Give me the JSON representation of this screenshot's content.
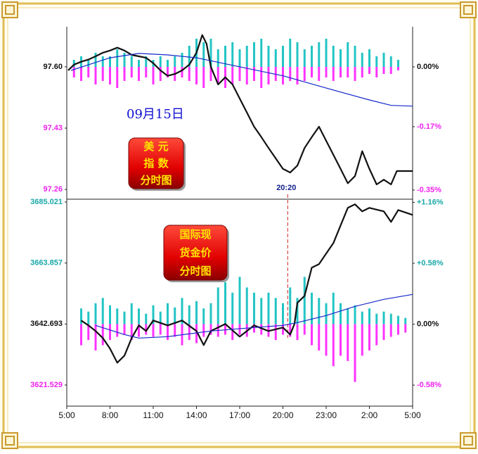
{
  "chart_data": [
    {
      "type": "line",
      "annotation": "09月15日",
      "badge": [
        "美 元",
        "指 数",
        "分时图"
      ],
      "marker": {
        "label": "20:20",
        "x": 15.33
      },
      "xlim": [
        0,
        24
      ],
      "ylim": [
        97.233,
        97.711
      ],
      "y2lim": [
        -0.376,
        0.114
      ],
      "yticks": [
        {
          "value": 97.6,
          "label": "97.60"
        },
        97.43,
        97.26
      ],
      "y2ticks": [
        {
          "value": 0,
          "label": "0.00%"
        },
        {
          "value": -0.17,
          "label": "-0.17%"
        },
        {
          "value": -0.35,
          "label": "-0.35%"
        }
      ],
      "tick_colors": {
        "up": "#1aa8a8",
        "zero": "#111111",
        "down": "#ee22ee"
      },
      "series": [
        {
          "color": "#111111",
          "x": [
            0.1,
            0.5,
            1,
            1.5,
            2,
            2.5,
            3,
            3.5,
            4,
            4.5,
            5,
            5.5,
            6,
            6.5,
            7,
            7.5,
            8,
            8.5,
            9,
            9.4,
            9.7,
            10,
            10.5,
            11,
            11.5,
            12,
            12.5,
            13,
            13.5,
            14,
            14.5,
            15,
            15.5,
            16,
            16.5,
            17,
            17.5,
            18,
            18.5,
            19,
            19.5,
            20,
            20.5,
            21,
            21.5,
            22,
            22.5,
            22.9,
            24
          ],
          "values": [
            97.59,
            97.606,
            97.614,
            97.62,
            97.629,
            97.639,
            97.645,
            97.653,
            97.645,
            97.633,
            97.629,
            97.625,
            97.61,
            97.59,
            97.575,
            97.58,
            97.59,
            97.606,
            97.639,
            97.688,
            97.664,
            97.6,
            97.551,
            97.571,
            97.551,
            97.512,
            97.473,
            97.434,
            97.405,
            97.375,
            97.346,
            97.317,
            97.307,
            97.326,
            97.375,
            97.405,
            97.434,
            97.395,
            97.356,
            97.317,
            97.277,
            97.297,
            97.366,
            97.317,
            97.274,
            97.287,
            97.274,
            97.311,
            97.311
          ]
        },
        {
          "color": "#1428c8",
          "x": [
            0.3,
            3,
            5,
            7,
            9,
            12,
            15,
            18,
            21,
            22.5,
            24
          ],
          "values": [
            97.59,
            97.625,
            97.637,
            97.633,
            97.625,
            97.6,
            97.575,
            97.541,
            97.508,
            97.493,
            97.491
          ]
        }
      ],
      "volume": {
        "up_color": "#22c4c4",
        "down_color": "#ff33ff",
        "x": [
          0.5,
          1,
          1.5,
          2,
          2.5,
          3,
          3.5,
          4,
          4.5,
          5,
          5.5,
          6,
          6.5,
          7,
          7.5,
          8,
          8.5,
          9,
          9.5,
          10,
          10.5,
          11,
          11.5,
          12,
          12.5,
          13,
          13.5,
          14,
          14.5,
          15,
          15.5,
          16,
          16.5,
          17,
          17.5,
          18,
          18.5,
          19,
          19.5,
          20,
          20.5,
          21,
          21.5,
          22,
          22.5,
          23,
          23.5
        ],
        "up": [
          0.02,
          0.03,
          0.02,
          0.04,
          0.03,
          0.03,
          0.05,
          0.04,
          0.03,
          0.02,
          0.03,
          0.02,
          0.03,
          0.02,
          0.03,
          0.04,
          0.06,
          0.08,
          0.07,
          0.08,
          0.05,
          0.06,
          0.07,
          0.05,
          0.06,
          0.07,
          0.08,
          0.06,
          0.05,
          0.06,
          0.08,
          0.07,
          0.05,
          0.06,
          0.07,
          0.08,
          0.06,
          0.05,
          0.07,
          0.06,
          0.04,
          0.05,
          0.03,
          0.04,
          0.03,
          0.02,
          0
        ],
        "down": [
          -0.03,
          -0.04,
          -0.03,
          -0.05,
          -0.04,
          -0.05,
          -0.06,
          -0.04,
          -0.03,
          -0.04,
          -0.03,
          -0.05,
          -0.04,
          -0.03,
          -0.04,
          -0.03,
          -0.04,
          -0.05,
          -0.06,
          -0.04,
          -0.05,
          -0.06,
          -0.05,
          -0.04,
          -0.05,
          -0.04,
          -0.06,
          -0.05,
          -0.04,
          -0.05,
          -0.04,
          -0.05,
          -0.04,
          -0.03,
          -0.04,
          -0.03,
          -0.04,
          -0.03,
          -0.03,
          -0.04,
          -0.03,
          -0.02,
          -0.03,
          -0.02,
          -0.02,
          -0.01,
          0
        ]
      }
    },
    {
      "type": "line",
      "badge": [
        "国际现",
        "货金价",
        "分时图"
      ],
      "xlim": [
        0,
        24
      ],
      "xticks": [
        {
          "value": 0,
          "label": "5:00"
        },
        {
          "value": 3,
          "label": "8:00"
        },
        {
          "value": 6,
          "label": "11:00"
        },
        {
          "value": 9,
          "label": "14:00"
        },
        {
          "value": 12,
          "label": "17:00"
        },
        {
          "value": 15,
          "label": "20:00"
        },
        {
          "value": 18,
          "label": "23:00"
        },
        {
          "value": 21,
          "label": "2:00"
        },
        {
          "value": 24,
          "label": "5:00"
        }
      ],
      "ylim": [
        3614.2,
        3686.0
      ],
      "y2lim": [
        -0.78,
        1.19
      ],
      "yticks": [
        3685.021,
        3663.857,
        3642.693,
        3621.529
      ],
      "y2ticks": [
        {
          "value": 1.16,
          "label": "+1.16%"
        },
        {
          "value": 0.58,
          "label": "+0.58%"
        },
        {
          "value": 0,
          "label": "0.00%"
        },
        {
          "value": -0.58,
          "label": "-0.58%"
        }
      ],
      "tick_colors": {
        "up": "#1aa8a8",
        "zero": "#111111",
        "down": "#ee22ee"
      },
      "series": [
        {
          "color": "#111111",
          "x": [
            1,
            1.5,
            2,
            2.5,
            3,
            3.5,
            4,
            4.5,
            5,
            5.5,
            6,
            7,
            8,
            9,
            9.5,
            10,
            11,
            12,
            13,
            14,
            15,
            15.5,
            15.8,
            16,
            16.5,
            17,
            17.5,
            18,
            18.5,
            19,
            19.5,
            20,
            20.5,
            21,
            22,
            22.5,
            23,
            24
          ],
          "values": [
            3643.91,
            3642.21,
            3640.25,
            3637.81,
            3634.15,
            3629.26,
            3631.7,
            3637.81,
            3642.21,
            3640.25,
            3643.91,
            3642.21,
            3643.91,
            3640.25,
            3635.37,
            3640.25,
            3642.69,
            3638.3,
            3642.21,
            3640.25,
            3641.47,
            3639.03,
            3642.69,
            3650.02,
            3652.46,
            3662.23,
            3663.45,
            3667.11,
            3670.78,
            3676.88,
            3682.99,
            3684.21,
            3681.77,
            3682.99,
            3681.77,
            3678.1,
            3682.25,
            3680.55
          ]
        },
        {
          "color": "#1428c8",
          "x": [
            2,
            4,
            5,
            7,
            10,
            13,
            15,
            16,
            18,
            20,
            22,
            24
          ],
          "values": [
            3642.21,
            3639.03,
            3637.81,
            3638.3,
            3640.25,
            3641.47,
            3642.21,
            3643.18,
            3645.62,
            3648.8,
            3651.24,
            3652.95
          ]
        }
      ],
      "volume": {
        "up_color": "#22c4c4",
        "down_color": "#ff33ff",
        "x": [
          0.5,
          1,
          1.5,
          2,
          2.5,
          3,
          3.5,
          4,
          4.5,
          5,
          5.5,
          6,
          6.5,
          7,
          7.5,
          8,
          8.5,
          9,
          9.5,
          10,
          10.5,
          11,
          11.5,
          12,
          12.5,
          13,
          13.5,
          14,
          14.5,
          15,
          15.5,
          16,
          16.5,
          17,
          17.5,
          18,
          18.5,
          19,
          19.5,
          20,
          20.5,
          21,
          21.5,
          22,
          22.5,
          23,
          23.5
        ],
        "up": [
          0,
          0.15,
          0.12,
          0.2,
          0.25,
          0.18,
          0.15,
          0.12,
          0.2,
          0.15,
          0.1,
          0.18,
          0.12,
          0.2,
          0.16,
          0.25,
          0.18,
          0.22,
          0.15,
          0.2,
          0.35,
          0.4,
          0.3,
          0.45,
          0.35,
          0.3,
          0.25,
          0.3,
          0.25,
          0.2,
          0.35,
          0.25,
          0.45,
          0.3,
          0.25,
          0.2,
          0.3,
          0.2,
          0.15,
          0.18,
          0.12,
          0.15,
          0.1,
          0.12,
          0.1,
          0.08,
          0.06
        ],
        "down": [
          0,
          -0.2,
          -0.15,
          -0.25,
          -0.2,
          -0.15,
          -0.12,
          -0.1,
          -0.15,
          -0.12,
          -0.1,
          -0.12,
          -0.1,
          -0.15,
          -0.12,
          -0.2,
          -0.15,
          -0.18,
          -0.12,
          -0.1,
          -0.12,
          -0.1,
          -0.15,
          -0.1,
          -0.12,
          -0.08,
          -0.1,
          -0.12,
          -0.15,
          -0.1,
          -0.12,
          -0.15,
          -0.1,
          -0.2,
          -0.25,
          -0.3,
          -0.4,
          -0.3,
          -0.35,
          -0.55,
          -0.3,
          -0.25,
          -0.2,
          -0.15,
          -0.12,
          -0.1,
          -0.08
        ]
      }
    }
  ]
}
